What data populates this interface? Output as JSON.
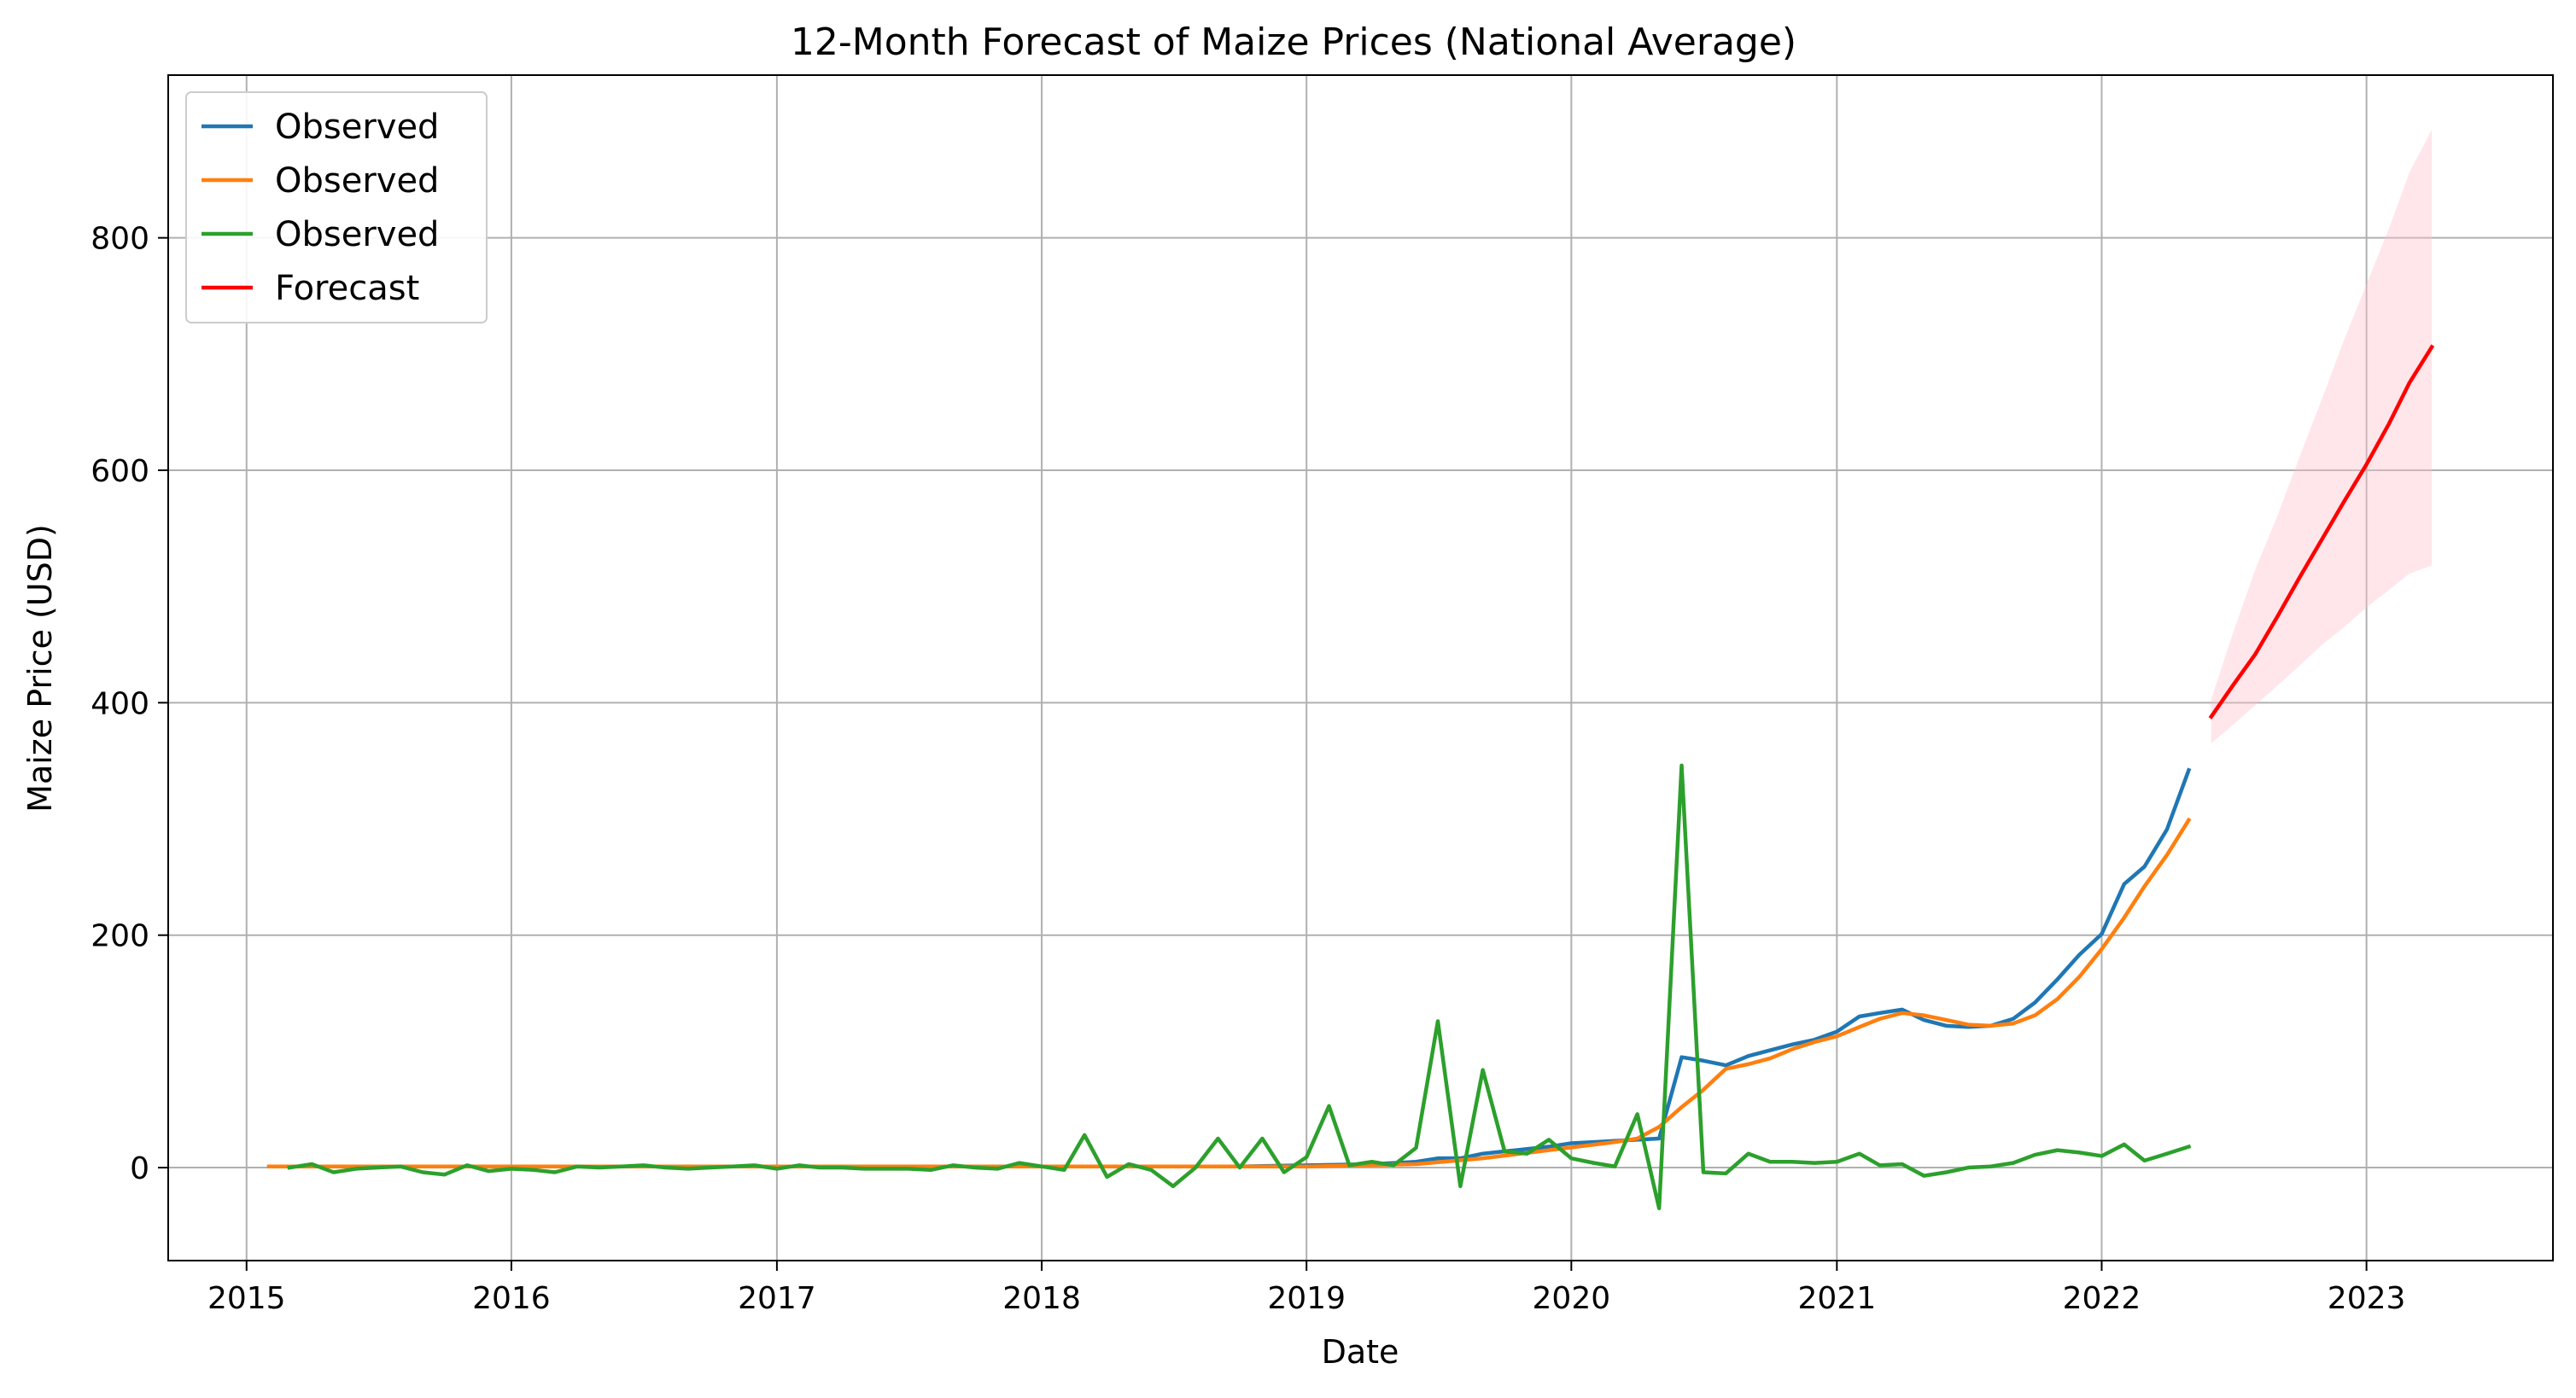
{
  "chart_data": {
    "type": "line",
    "title": "12-Month Forecast of Maize Prices (National Average)",
    "xlabel": "Date",
    "ylabel": "Maize Price (USD)",
    "xlim": [
      "2014-09-15",
      "2023-09-15"
    ],
    "ylim": [
      -80,
      940
    ],
    "x_ticks": [
      "2015",
      "2016",
      "2017",
      "2018",
      "2019",
      "2020",
      "2021",
      "2022",
      "2023"
    ],
    "y_ticks": [
      0,
      200,
      400,
      600,
      800
    ],
    "grid": true,
    "legend_position": "upper left",
    "legend": [
      "Observed",
      "Observed",
      "Observed",
      "Forecast"
    ],
    "series": [
      {
        "name": "Observed",
        "color": "#1f77b4",
        "points": [
          [
            "2015-02-01",
            1
          ],
          [
            "2015-03-01",
            1
          ],
          [
            "2015-04-01",
            1
          ],
          [
            "2015-06-01",
            1
          ],
          [
            "2015-09-01",
            1
          ],
          [
            "2016-01-01",
            1
          ],
          [
            "2016-06-01",
            1
          ],
          [
            "2017-01-01",
            1
          ],
          [
            "2017-06-01",
            1
          ],
          [
            "2018-01-01",
            1
          ],
          [
            "2018-06-01",
            1
          ],
          [
            "2018-10-01",
            1
          ],
          [
            "2019-01-01",
            2
          ],
          [
            "2019-04-01",
            3
          ],
          [
            "2019-06-01",
            5
          ],
          [
            "2019-07-01",
            8
          ],
          [
            "2019-08-01",
            8
          ],
          [
            "2019-09-01",
            12
          ],
          [
            "2019-10-01",
            14
          ],
          [
            "2019-11-01",
            16
          ],
          [
            "2019-12-01",
            18
          ],
          [
            "2020-01-01",
            21
          ],
          [
            "2020-02-01",
            22
          ],
          [
            "2020-03-01",
            23
          ],
          [
            "2020-04-01",
            24
          ],
          [
            "2020-05-01",
            25
          ],
          [
            "2020-06-01",
            95
          ],
          [
            "2020-07-01",
            92
          ],
          [
            "2020-08-01",
            88
          ],
          [
            "2020-09-01",
            96
          ],
          [
            "2020-10-01",
            101
          ],
          [
            "2020-11-01",
            106
          ],
          [
            "2020-12-01",
            110
          ],
          [
            "2021-01-01",
            117
          ],
          [
            "2021-02-01",
            130
          ],
          [
            "2021-03-01",
            133
          ],
          [
            "2021-04-01",
            136
          ],
          [
            "2021-05-01",
            127
          ],
          [
            "2021-06-01",
            122
          ],
          [
            "2021-07-01",
            121
          ],
          [
            "2021-08-01",
            122
          ],
          [
            "2021-09-01",
            128
          ],
          [
            "2021-10-01",
            142
          ],
          [
            "2021-11-01",
            162
          ],
          [
            "2021-12-01",
            183
          ],
          [
            "2022-01-01",
            201
          ],
          [
            "2022-02-01",
            244
          ],
          [
            "2022-03-01",
            259
          ],
          [
            "2022-04-01",
            291
          ],
          [
            "2022-05-01",
            342
          ]
        ]
      },
      {
        "name": "Observed",
        "color": "#ff7f0e",
        "points": [
          [
            "2015-02-01",
            1
          ],
          [
            "2015-06-01",
            1
          ],
          [
            "2016-01-01",
            1
          ],
          [
            "2016-06-01",
            1
          ],
          [
            "2017-01-01",
            1
          ],
          [
            "2017-06-01",
            1
          ],
          [
            "2018-01-01",
            1
          ],
          [
            "2018-06-01",
            1
          ],
          [
            "2019-01-01",
            1
          ],
          [
            "2019-06-01",
            3
          ],
          [
            "2019-09-01",
            8
          ],
          [
            "2019-12-01",
            15
          ],
          [
            "2020-03-01",
            22
          ],
          [
            "2020-04-01",
            25
          ],
          [
            "2020-05-01",
            35
          ],
          [
            "2020-06-01",
            52
          ],
          [
            "2020-07-01",
            67
          ],
          [
            "2020-08-01",
            85
          ],
          [
            "2020-09-01",
            89
          ],
          [
            "2020-10-01",
            94
          ],
          [
            "2020-11-01",
            102
          ],
          [
            "2020-12-01",
            108
          ],
          [
            "2021-01-01",
            113
          ],
          [
            "2021-02-01",
            121
          ],
          [
            "2021-03-01",
            128
          ],
          [
            "2021-04-01",
            133
          ],
          [
            "2021-05-01",
            131
          ],
          [
            "2021-06-01",
            127
          ],
          [
            "2021-07-01",
            123
          ],
          [
            "2021-08-01",
            122
          ],
          [
            "2021-09-01",
            124
          ],
          [
            "2021-10-01",
            131
          ],
          [
            "2021-11-01",
            145
          ],
          [
            "2021-12-01",
            164
          ],
          [
            "2022-01-01",
            188
          ],
          [
            "2022-02-01",
            215
          ],
          [
            "2022-03-01",
            242
          ],
          [
            "2022-04-01",
            269
          ],
          [
            "2022-05-01",
            299
          ]
        ]
      },
      {
        "name": "Observed",
        "color": "#2ca02c",
        "points": [
          [
            "2015-03-01",
            0
          ],
          [
            "2015-04-01",
            3
          ],
          [
            "2015-05-01",
            -4
          ],
          [
            "2015-06-01",
            -1
          ],
          [
            "2015-07-01",
            0
          ],
          [
            "2015-08-01",
            1
          ],
          [
            "2015-09-01",
            -4
          ],
          [
            "2015-10-01",
            -6
          ],
          [
            "2015-11-01",
            2
          ],
          [
            "2015-12-01",
            -3
          ],
          [
            "2016-01-01",
            -1
          ],
          [
            "2016-02-01",
            -2
          ],
          [
            "2016-03-01",
            -4
          ],
          [
            "2016-04-01",
            1
          ],
          [
            "2016-05-01",
            0
          ],
          [
            "2016-06-01",
            1
          ],
          [
            "2016-07-01",
            2
          ],
          [
            "2016-08-01",
            0
          ],
          [
            "2016-09-01",
            -1
          ],
          [
            "2016-10-01",
            0
          ],
          [
            "2016-11-01",
            1
          ],
          [
            "2016-12-01",
            2
          ],
          [
            "2017-01-01",
            -1
          ],
          [
            "2017-02-01",
            2
          ],
          [
            "2017-03-01",
            0
          ],
          [
            "2017-04-01",
            0
          ],
          [
            "2017-05-01",
            -1
          ],
          [
            "2017-06-01",
            -1
          ],
          [
            "2017-07-01",
            -1
          ],
          [
            "2017-08-01",
            -2
          ],
          [
            "2017-09-01",
            2
          ],
          [
            "2017-10-01",
            0
          ],
          [
            "2017-11-01",
            -1
          ],
          [
            "2017-12-01",
            4
          ],
          [
            "2018-01-01",
            1
          ],
          [
            "2018-02-01",
            -2
          ],
          [
            "2018-03-01",
            28
          ],
          [
            "2018-04-01",
            -8
          ],
          [
            "2018-05-01",
            3
          ],
          [
            "2018-06-01",
            -2
          ],
          [
            "2018-07-01",
            -16
          ],
          [
            "2018-08-01",
            0
          ],
          [
            "2018-09-01",
            25
          ],
          [
            "2018-10-01",
            0
          ],
          [
            "2018-11-01",
            25
          ],
          [
            "2018-12-01",
            -4
          ],
          [
            "2019-01-01",
            9
          ],
          [
            "2019-02-01",
            53
          ],
          [
            "2019-03-01",
            2
          ],
          [
            "2019-04-01",
            5
          ],
          [
            "2019-05-01",
            2
          ],
          [
            "2019-06-01",
            17
          ],
          [
            "2019-07-01",
            126
          ],
          [
            "2019-08-01",
            -16
          ],
          [
            "2019-09-01",
            84
          ],
          [
            "2019-10-01",
            14
          ],
          [
            "2019-11-01",
            12
          ],
          [
            "2019-12-01",
            24
          ],
          [
            "2020-01-01",
            8
          ],
          [
            "2020-02-01",
            4
          ],
          [
            "2020-03-01",
            1
          ],
          [
            "2020-04-01",
            46
          ],
          [
            "2020-05-01",
            -35
          ],
          [
            "2020-06-01",
            346
          ],
          [
            "2020-07-01",
            -4
          ],
          [
            "2020-08-01",
            -5
          ],
          [
            "2020-09-01",
            12
          ],
          [
            "2020-10-01",
            5
          ],
          [
            "2020-11-01",
            5
          ],
          [
            "2020-12-01",
            4
          ],
          [
            "2021-01-01",
            5
          ],
          [
            "2021-02-01",
            12
          ],
          [
            "2021-03-01",
            2
          ],
          [
            "2021-04-01",
            3
          ],
          [
            "2021-05-01",
            -7
          ],
          [
            "2021-06-01",
            -4
          ],
          [
            "2021-07-01",
            0
          ],
          [
            "2021-08-01",
            1
          ],
          [
            "2021-09-01",
            4
          ],
          [
            "2021-10-01",
            11
          ],
          [
            "2021-11-01",
            15
          ],
          [
            "2021-12-01",
            13
          ],
          [
            "2022-01-01",
            10
          ],
          [
            "2022-02-01",
            20
          ],
          [
            "2022-03-01",
            6
          ],
          [
            "2022-04-01",
            12
          ],
          [
            "2022-05-01",
            18
          ]
        ]
      },
      {
        "name": "Forecast",
        "color": "#ff0000",
        "points": [
          [
            "2022-06-01",
            388
          ],
          [
            "2022-07-01",
            415
          ],
          [
            "2022-08-01",
            442
          ],
          [
            "2022-09-01",
            475
          ],
          [
            "2022-10-01",
            508
          ],
          [
            "2022-11-01",
            541
          ],
          [
            "2022-12-01",
            573
          ],
          [
            "2023-01-01",
            605
          ],
          [
            "2023-02-01",
            640
          ],
          [
            "2023-03-01",
            675
          ],
          [
            "2023-04-01",
            706
          ]
        ],
        "interval_color": "#ffc0cb",
        "interval_upper": [
          403,
          460,
          515,
          562,
          612,
          662,
          712,
          760,
          808,
          856,
          893
        ],
        "interval_lower": [
          365,
          381,
          398,
          415,
          432,
          450,
          465,
          482,
          497,
          511,
          518
        ]
      }
    ]
  }
}
